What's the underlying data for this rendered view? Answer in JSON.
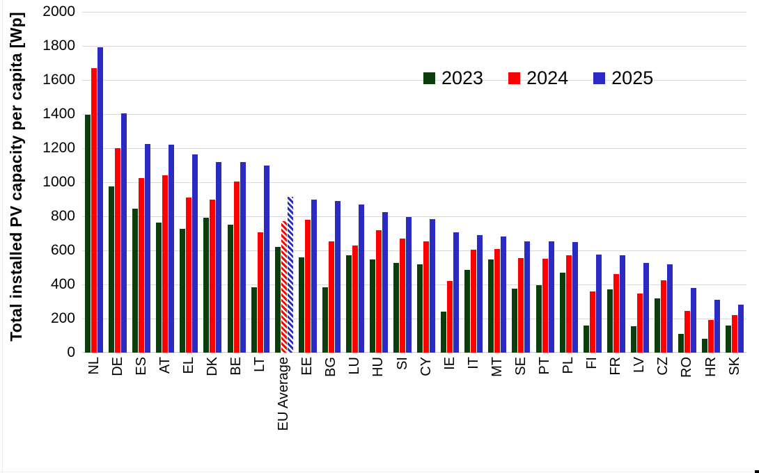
{
  "chart_data": {
    "type": "bar",
    "title": "",
    "xlabel": "",
    "ylabel": "Total installed PV capacity per capita [Wp]",
    "ylim": [
      0,
      2000
    ],
    "ytick_step": 200,
    "grid": "horizontal-light-gray",
    "legend_position": "top-center-inside",
    "categories": [
      "NL",
      "DE",
      "ES",
      "AT",
      "EL",
      "DK",
      "BE",
      "LT",
      "EU Average",
      "EE",
      "BG",
      "LU",
      "HU",
      "SI",
      "CY",
      "IE",
      "IT",
      "MT",
      "SE",
      "PT",
      "PL",
      "FI",
      "FR",
      "LV",
      "CZ",
      "RO",
      "HR",
      "SK"
    ],
    "series": [
      {
        "name": "2023",
        "color": "#0c3d0c",
        "values": [
          1395,
          975,
          845,
          765,
          725,
          790,
          750,
          385,
          620,
          560,
          385,
          570,
          545,
          525,
          520,
          240,
          485,
          545,
          375,
          395,
          470,
          160,
          370,
          155,
          320,
          110,
          80,
          160
        ]
      },
      {
        "name": "2024",
        "color": "#ff0000",
        "values": [
          1670,
          1200,
          1025,
          1040,
          910,
          900,
          1005,
          705,
          770,
          780,
          655,
          630,
          720,
          670,
          655,
          420,
          605,
          610,
          555,
          550,
          570,
          360,
          460,
          345,
          425,
          245,
          190,
          220
        ]
      },
      {
        "name": "2025",
        "color": "#2b2bc4",
        "values": [
          1790,
          1405,
          1225,
          1220,
          1165,
          1120,
          1120,
          1100,
          915,
          900,
          890,
          870,
          825,
          795,
          785,
          705,
          690,
          680,
          655,
          655,
          650,
          575,
          570,
          525,
          520,
          380,
          310,
          280
        ]
      }
    ],
    "hatched": {
      "category": "EU Average",
      "series": [
        "2024",
        "2025"
      ]
    }
  }
}
